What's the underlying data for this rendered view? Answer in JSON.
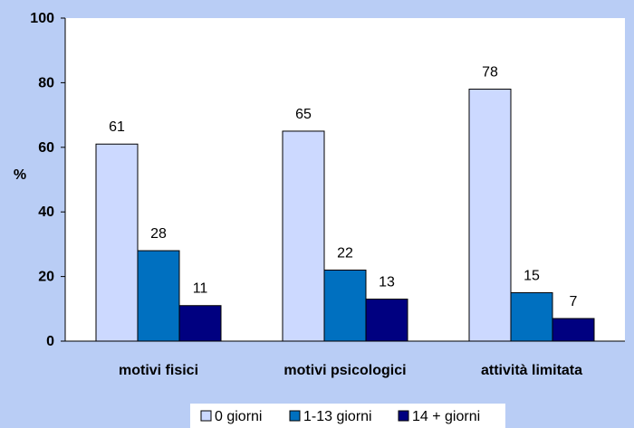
{
  "chart_data": {
    "type": "bar",
    "categories": [
      "motivi fisici",
      "motivi psicologici",
      "attività limitata"
    ],
    "series": [
      {
        "name": "0 giorni",
        "values": [
          61,
          65,
          78
        ],
        "color": "#ccd9ff"
      },
      {
        "name": "1-13 giorni",
        "values": [
          28,
          22,
          15
        ],
        "color": "#0070c0"
      },
      {
        "name": "14 + giorni",
        "values": [
          11,
          13,
          7
        ],
        "color": "#000080"
      }
    ],
    "ylabel": "%",
    "ylim": [
      0,
      100
    ],
    "yticks": [
      0,
      20,
      40,
      60,
      80,
      100
    ],
    "grid": false,
    "legend_position": "bottom",
    "plot_background": "#ffffff",
    "page_background": "#b9cdf5"
  }
}
